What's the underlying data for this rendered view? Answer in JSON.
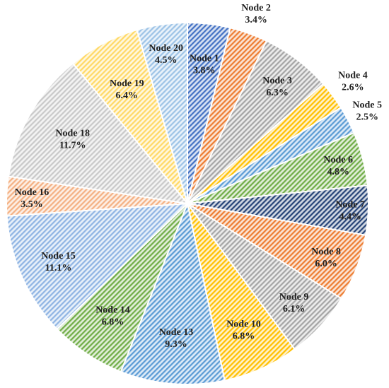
{
  "chart_data": {
    "type": "pie",
    "title": "",
    "slices": [
      {
        "label": "Node 1",
        "value": 3.8,
        "value_label": "3.8%",
        "color": "#4472c4"
      },
      {
        "label": "Node 2",
        "value": 3.4,
        "value_label": "3.4%",
        "color": "#ed7d31"
      },
      {
        "label": "Node 3",
        "value": 6.3,
        "value_label": "6.3%",
        "color": "#a5a5a5"
      },
      {
        "label": "Node 4",
        "value": 2.6,
        "value_label": "2.6%",
        "color": "#ffc000"
      },
      {
        "label": "Node 5",
        "value": 2.5,
        "value_label": "2.5%",
        "color": "#5b9bd5"
      },
      {
        "label": "Node 6",
        "value": 4.8,
        "value_label": "4.8%",
        "color": "#70ad47"
      },
      {
        "label": "Node 7",
        "value": 4.4,
        "value_label": "4.4%",
        "color": "#264478"
      },
      {
        "label": "Node 8",
        "value": 6.0,
        "value_label": "6.0%",
        "color": "#ed7d31"
      },
      {
        "label": "Node 9",
        "value": 6.1,
        "value_label": "6.1%",
        "color": "#a5a5a5"
      },
      {
        "label": "Node 10",
        "value": 6.8,
        "value_label": "6.8%",
        "color": "#ffc000"
      },
      {
        "label": "Node 13",
        "value": 9.3,
        "value_label": "9.3%",
        "color": "#5b9bd5"
      },
      {
        "label": "Node 14",
        "value": 6.8,
        "value_label": "6.8%",
        "color": "#70ad47"
      },
      {
        "label": "Node 15",
        "value": 11.1,
        "value_label": "11.1%",
        "color": "#8fb4e3"
      },
      {
        "label": "Node 16",
        "value": 3.5,
        "value_label": "3.5%",
        "color": "#f4b183"
      },
      {
        "label": "Node 18",
        "value": 11.7,
        "value_label": "11.7%",
        "color": "#c9c9c9"
      },
      {
        "label": "Node 19",
        "value": 6.4,
        "value_label": "6.4%",
        "color": "#ffd966"
      },
      {
        "label": "Node 20",
        "value": 4.5,
        "value_label": "4.5%",
        "color": "#9dc3e6"
      }
    ],
    "start_angle_deg": 0,
    "direction": "clockwise",
    "pattern": "diagonal-hatch",
    "legend": "none"
  }
}
